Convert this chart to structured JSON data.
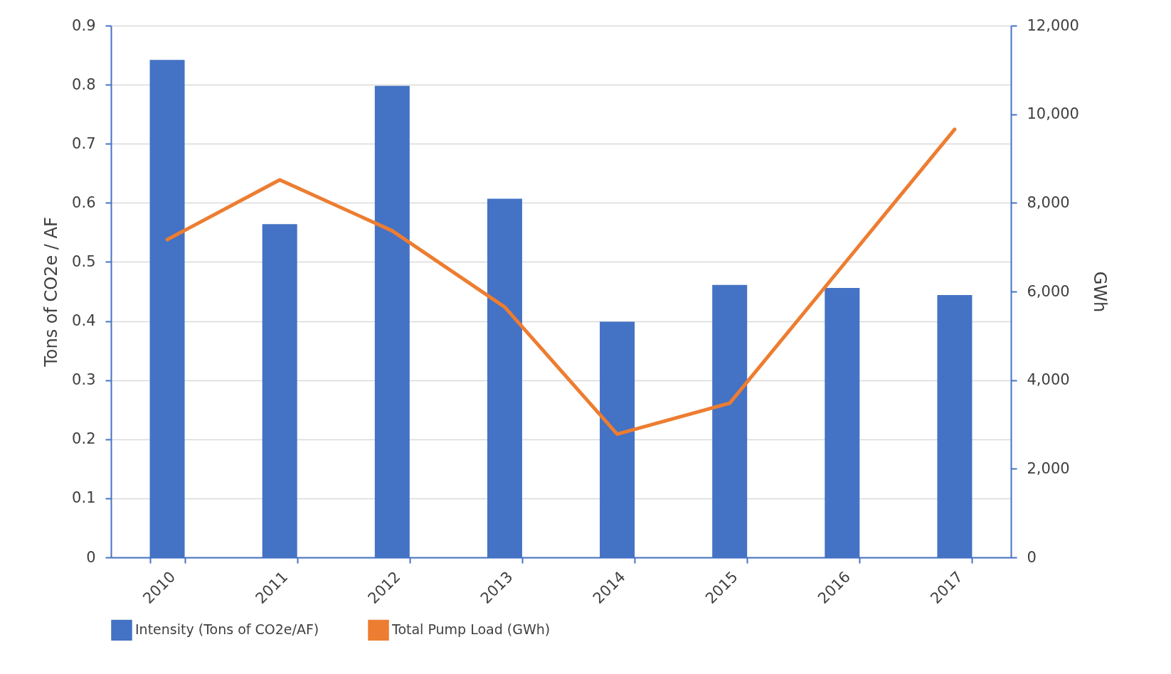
{
  "chart_data": {
    "type": "bar",
    "categories": [
      "2010",
      "2011",
      "2012",
      "2013",
      "2014",
      "2015",
      "2016",
      "2017"
    ],
    "ylabel": "Tons of CO2e / AF",
    "y2label": "GWh",
    "ylim": [
      0,
      0.9
    ],
    "yticks": [
      {
        "value": 0,
        "label": "0"
      },
      0.1,
      0.2,
      0.3,
      0.4,
      0.5,
      0.6,
      0.7,
      0.8,
      0.9
    ],
    "y2lim": [
      0,
      12000
    ],
    "y2ticks": [
      {
        "value": 0,
        "label": "0"
      },
      {
        "value": 2000,
        "label": "2,000"
      },
      {
        "value": 4000,
        "label": "4,000"
      },
      {
        "value": 6000,
        "label": "6,000"
      },
      {
        "value": 8000,
        "label": "8,000"
      },
      {
        "value": 10000,
        "label": "10,000"
      },
      {
        "value": 12000,
        "label": "12,000"
      }
    ],
    "series": [
      {
        "name": "Intensity (Tons of CO2e/AF)",
        "color": "#4472c4",
        "values": [
          0.842,
          0.564,
          0.798,
          0.607,
          0.399,
          0.461,
          0.456,
          0.444
        ]
      },
      {
        "name": "Total Pump Load (GWh)",
        "type": "line",
        "axis": "y2",
        "color": "#ed7d31",
        "values": [
          7170,
          8520,
          7370,
          5650,
          2780,
          3480,
          6570,
          9660
        ]
      }
    ],
    "grid": "y",
    "legend": "bottom"
  }
}
